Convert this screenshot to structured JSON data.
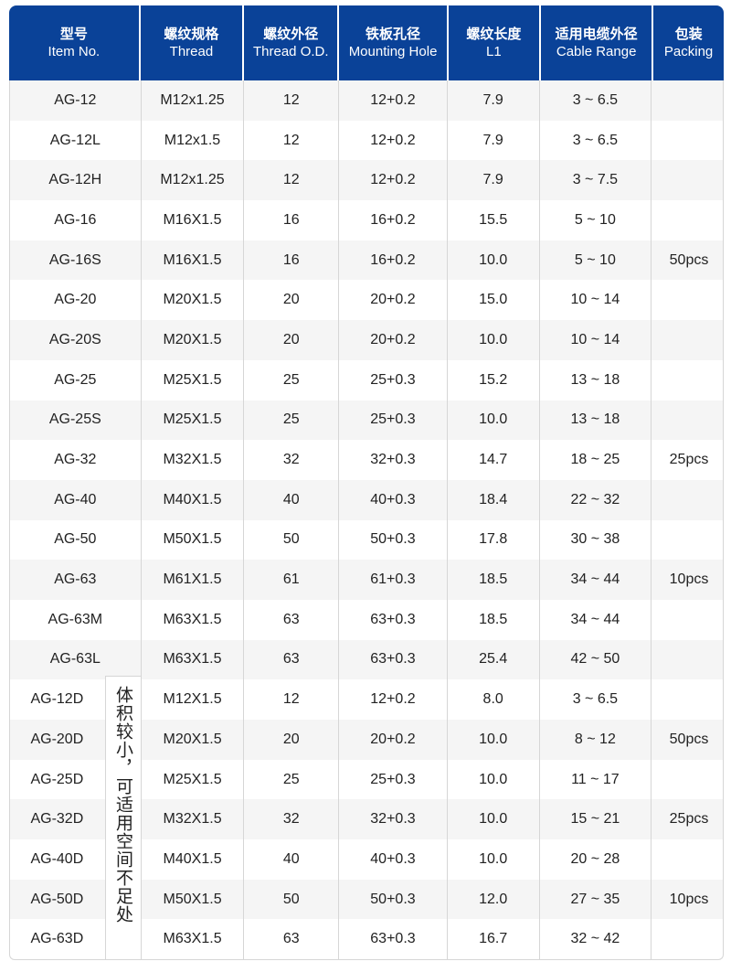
{
  "headers": [
    {
      "cn": "型号",
      "en": "Item No."
    },
    {
      "cn": "螺纹规格",
      "en": "Thread"
    },
    {
      "cn": "螺纹外径",
      "en": "Thread O.D."
    },
    {
      "cn": "铁板孔径",
      "en": "Mounting Hole"
    },
    {
      "cn": "螺纹长度",
      "en": "L1"
    },
    {
      "cn": "适用电缆外径",
      "en": "Cable Range"
    },
    {
      "cn": "包装",
      "en": "Packing"
    }
  ],
  "rows": [
    [
      "AG-12",
      "M12x1.25",
      "12",
      "12+0.2",
      "7.9",
      "3 ~ 6.5"
    ],
    [
      "AG-12L",
      "M12x1.5",
      "12",
      "12+0.2",
      "7.9",
      "3 ~ 6.5"
    ],
    [
      "AG-12H",
      "M12x1.25",
      "12",
      "12+0.2",
      "7.9",
      "3 ~ 7.5"
    ],
    [
      "AG-16",
      "M16X1.5",
      "16",
      "16+0.2",
      "15.5",
      "5 ~ 10"
    ],
    [
      "AG-16S",
      "M16X1.5",
      "16",
      "16+0.2",
      "10.0",
      "5 ~ 10"
    ],
    [
      "AG-20",
      "M20X1.5",
      "20",
      "20+0.2",
      "15.0",
      "10 ~ 14"
    ],
    [
      "AG-20S",
      "M20X1.5",
      "20",
      "20+0.2",
      "10.0",
      "10 ~ 14"
    ],
    [
      "AG-25",
      "M25X1.5",
      "25",
      "25+0.3",
      "15.2",
      "13 ~ 18"
    ],
    [
      "AG-25S",
      "M25X1.5",
      "25",
      "25+0.3",
      "10.0",
      "13 ~ 18"
    ],
    [
      "AG-32",
      "M32X1.5",
      "32",
      "32+0.3",
      "14.7",
      "18 ~ 25"
    ],
    [
      "AG-40",
      "M40X1.5",
      "40",
      "40+0.3",
      "18.4",
      "22 ~ 32"
    ],
    [
      "AG-50",
      "M50X1.5",
      "50",
      "50+0.3",
      "17.8",
      "30 ~ 38"
    ],
    [
      "AG-63",
      "M61X1.5",
      "61",
      "61+0.3",
      "18.5",
      "34 ~ 44"
    ],
    [
      "AG-63M",
      "M63X1.5",
      "63",
      "63+0.3",
      "18.5",
      "34 ~ 44"
    ],
    [
      "AG-63L",
      "M63X1.5",
      "63",
      "63+0.3",
      "25.4",
      "42 ~ 50"
    ],
    [
      "AG-12D",
      "M12X1.5",
      "12",
      "12+0.2",
      "8.0",
      "3 ~ 6.5"
    ],
    [
      "AG-20D",
      "M20X1.5",
      "20",
      "20+0.2",
      "10.0",
      "8 ~ 12"
    ],
    [
      "AG-25D",
      "M25X1.5",
      "25",
      "25+0.3",
      "10.0",
      "11 ~ 17"
    ],
    [
      "AG-32D",
      "M32X1.5",
      "32",
      "32+0.3",
      "10.0",
      "15 ~ 21"
    ],
    [
      "AG-40D",
      "M40X1.5",
      "40",
      "40+0.3",
      "10.0",
      "20 ~ 28"
    ],
    [
      "AG-50D",
      "M50X1.5",
      "50",
      "50+0.3",
      "12.0",
      "27 ~ 35"
    ],
    [
      "AG-63D",
      "M63X1.5",
      "63",
      "63+0.3",
      "16.7",
      "32 ~ 42"
    ]
  ],
  "packing": [
    {
      "label": "50pcs",
      "start": 0,
      "span": 9
    },
    {
      "label": "25pcs",
      "start": 9,
      "span": 1
    },
    {
      "label": "10pcs",
      "start": 10,
      "span": 5
    },
    {
      "label": "50pcs",
      "start": 15,
      "span": 3
    },
    {
      "label": "25pcs",
      "start": 18,
      "span": 1
    },
    {
      "label": "10pcs",
      "start": 19,
      "span": 3
    }
  ],
  "note": "体积较小，可适用空间不足处"
}
